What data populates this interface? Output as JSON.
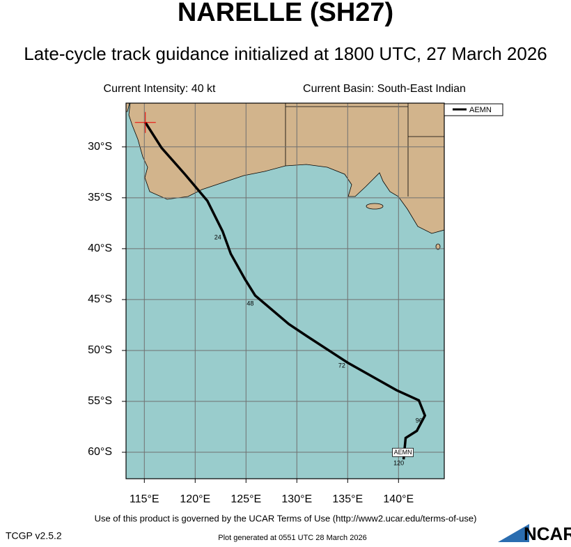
{
  "chart_data": {
    "type": "track",
    "title": "NARELLE (SH27)",
    "subtitle": "Late-cycle track guidance initialized at 1800 UTC, 27 March 2026",
    "left_note": "Current Intensity: 40 kt",
    "right_note": "Current Basin: South-East Indian",
    "xlim": [
      113.2,
      144.5
    ],
    "ylim": [
      -62.6,
      -25.7
    ],
    "xticks": [
      {
        "value": 115,
        "label": "115°E"
      },
      {
        "value": 120,
        "label": "120°E"
      },
      {
        "value": 125,
        "label": "125°E"
      },
      {
        "value": 130,
        "label": "130°E"
      },
      {
        "value": 135,
        "label": "135°E"
      },
      {
        "value": 140,
        "label": "140°E"
      }
    ],
    "yticks": [
      {
        "value": -30,
        "label": "30°S"
      },
      {
        "value": -35,
        "label": "35°S"
      },
      {
        "value": -40,
        "label": "40°S"
      },
      {
        "value": -45,
        "label": "45°S"
      },
      {
        "value": -50,
        "label": "50°S"
      },
      {
        "value": -55,
        "label": "55°S"
      },
      {
        "value": -60,
        "label": "60°S"
      }
    ],
    "grid": true,
    "series": [
      {
        "name": "AEMN",
        "color": "#000000",
        "x": [
          115.1,
          116.7,
          119.0,
          121.2,
          122.7,
          123.5,
          124.9,
          125.9,
          129.2,
          131.0,
          135.0,
          139.8,
          142.0,
          142.6,
          141.8,
          140.7,
          140.5
        ],
        "values": [
          -27.6,
          -30.1,
          -32.7,
          -35.3,
          -38.3,
          -40.5,
          -43.0,
          -44.6,
          -47.4,
          -48.6,
          -51.2,
          -53.9,
          -54.9,
          -56.4,
          -57.9,
          -58.6,
          -60.7
        ],
        "forecast_hours": [
          {
            "value": 24,
            "x": 122.7,
            "y": -38.5
          },
          {
            "value": 48,
            "x": 125.9,
            "y": -45.0
          },
          {
            "value": 72,
            "x": 134.9,
            "y": -51.1
          },
          {
            "value": 96,
            "x": 142.5,
            "y": -56.5
          },
          {
            "value": 120,
            "x": 140.5,
            "y": -60.7
          }
        ]
      }
    ],
    "footer": "Use of this product is governed by the UCAR Terms of Use (http://www2.ucar.edu/terms-of-use)",
    "version": "TCGP v2.5.2",
    "generated": "Plot generated at 0551 UTC  28 March 2026",
    "logo": "NCAR"
  }
}
